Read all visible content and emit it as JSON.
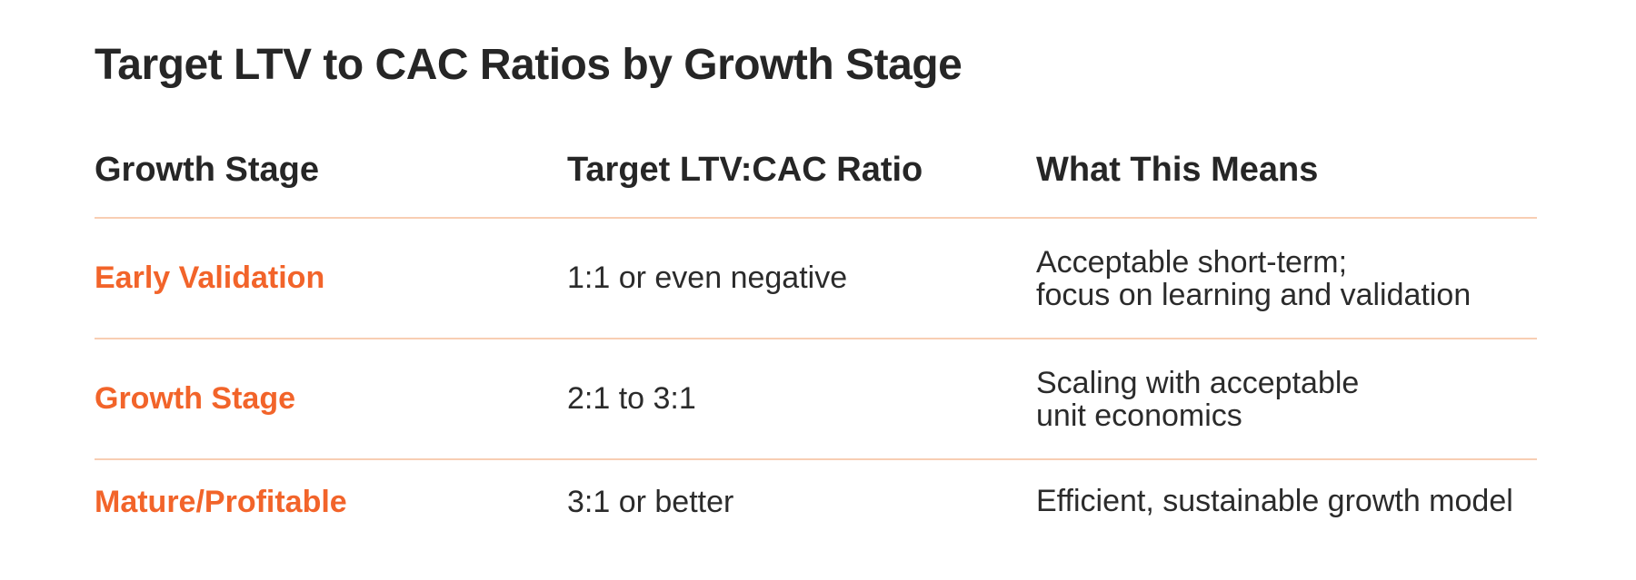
{
  "colors": {
    "background": "#ffffff",
    "text_dark": "#2b2b2b",
    "accent_orange": "#f2642a",
    "divider_peach": "#f8ceb3"
  },
  "title": "Target LTV to CAC Ratios by Growth Stage",
  "table": {
    "columns": [
      "Growth Stage",
      "Target LTV:CAC Ratio",
      "What This Means"
    ],
    "rows": [
      {
        "stage": "Early Validation",
        "ratio": "1:1 or even negative",
        "meaning": [
          "Acceptable short-term;",
          "focus on learning and validation"
        ]
      },
      {
        "stage": "Growth Stage",
        "ratio": "2:1 to 3:1",
        "meaning": [
          "Scaling with acceptable",
          "unit economics"
        ]
      },
      {
        "stage": "Mature/Profitable",
        "ratio": "3:1 or better",
        "meaning": [
          "Efficient, sustainable growth model"
        ]
      }
    ]
  }
}
